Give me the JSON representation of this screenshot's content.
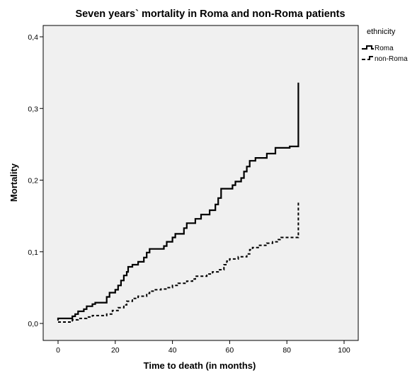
{
  "chart_data": {
    "type": "line",
    "title": "Seven years` mortality in Roma and non-Roma patients",
    "xlabel": "Time to death (in months)",
    "ylabel": "Mortality",
    "xlim": [
      -5,
      105
    ],
    "ylim": [
      -0.01,
      0.41
    ],
    "xticks": [
      0,
      20,
      40,
      60,
      80,
      100
    ],
    "xtick_labels": [
      "0",
      "20",
      "40",
      "60",
      "80",
      "100"
    ],
    "yticks": [
      0.0,
      0.1,
      0.2,
      0.3,
      0.4
    ],
    "ytick_labels": [
      "0,0",
      "0,1",
      "0,2",
      "0,3",
      "0,4"
    ],
    "grid": false,
    "step": true,
    "legend": {
      "title": "ethnicity",
      "position": "right"
    },
    "series": [
      {
        "name": "Roma",
        "style": "solid",
        "color": "#000000",
        "points": [
          [
            0,
            0.004
          ],
          [
            0,
            0.007
          ],
          [
            3,
            0.007
          ],
          [
            5,
            0.01
          ],
          [
            6,
            0.013
          ],
          [
            7,
            0.017
          ],
          [
            9,
            0.02
          ],
          [
            10,
            0.024
          ],
          [
            12,
            0.027
          ],
          [
            13,
            0.029
          ],
          [
            17,
            0.037
          ],
          [
            18,
            0.043
          ],
          [
            20,
            0.047
          ],
          [
            21,
            0.053
          ],
          [
            22,
            0.06
          ],
          [
            23,
            0.067
          ],
          [
            24,
            0.072
          ],
          [
            24.5,
            0.079
          ],
          [
            26,
            0.082
          ],
          [
            28,
            0.086
          ],
          [
            30,
            0.092
          ],
          [
            31,
            0.099
          ],
          [
            32,
            0.104
          ],
          [
            37,
            0.108
          ],
          [
            38,
            0.114
          ],
          [
            40,
            0.12
          ],
          [
            41,
            0.125
          ],
          [
            44,
            0.133
          ],
          [
            45,
            0.14
          ],
          [
            48,
            0.146
          ],
          [
            50,
            0.152
          ],
          [
            53,
            0.158
          ],
          [
            55,
            0.166
          ],
          [
            56,
            0.175
          ],
          [
            57,
            0.188
          ],
          [
            61,
            0.193
          ],
          [
            62,
            0.198
          ],
          [
            64,
            0.203
          ],
          [
            65,
            0.212
          ],
          [
            66,
            0.219
          ],
          [
            67,
            0.227
          ],
          [
            69,
            0.231
          ],
          [
            73,
            0.237
          ],
          [
            76,
            0.245
          ],
          [
            81,
            0.247
          ],
          [
            84,
            0.247
          ],
          [
            84,
            0.336
          ]
        ]
      },
      {
        "name": "non-Roma",
        "style": "dashed",
        "color": "#000000",
        "points": [
          [
            0,
            0.002
          ],
          [
            2,
            0.002
          ],
          [
            5,
            0.005
          ],
          [
            7,
            0.007
          ],
          [
            10,
            0.009
          ],
          [
            12,
            0.011
          ],
          [
            17,
            0.013
          ],
          [
            19,
            0.018
          ],
          [
            21,
            0.022
          ],
          [
            23,
            0.026
          ],
          [
            24,
            0.031
          ],
          [
            26,
            0.035
          ],
          [
            28,
            0.038
          ],
          [
            31,
            0.042
          ],
          [
            32,
            0.045
          ],
          [
            34,
            0.047
          ],
          [
            36,
            0.048
          ],
          [
            38,
            0.05
          ],
          [
            40,
            0.053
          ],
          [
            42,
            0.056
          ],
          [
            45,
            0.059
          ],
          [
            47,
            0.062
          ],
          [
            48,
            0.066
          ],
          [
            52,
            0.069
          ],
          [
            54,
            0.072
          ],
          [
            56,
            0.075
          ],
          [
            58,
            0.082
          ],
          [
            59,
            0.087
          ],
          [
            60,
            0.09
          ],
          [
            63,
            0.093
          ],
          [
            66,
            0.097
          ],
          [
            67,
            0.103
          ],
          [
            68,
            0.106
          ],
          [
            70,
            0.109
          ],
          [
            73,
            0.112
          ],
          [
            75,
            0.114
          ],
          [
            77,
            0.117
          ],
          [
            78,
            0.12
          ],
          [
            84,
            0.12
          ],
          [
            84,
            0.17
          ]
        ]
      }
    ]
  }
}
